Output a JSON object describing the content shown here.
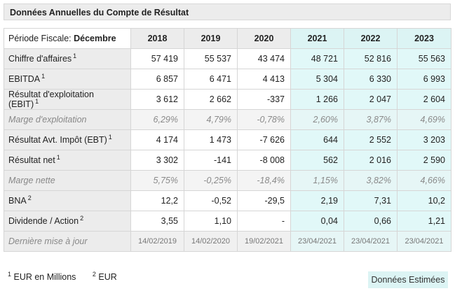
{
  "title": "Données Annuelles du Compte de Résultat",
  "header": {
    "period_label": "Période Fiscale: ",
    "period_value": "Décembre",
    "years": [
      "2018",
      "2019",
      "2020",
      "2021",
      "2022",
      "2023"
    ]
  },
  "rows": [
    {
      "label": "Chiffre d'affaires",
      "note": "1",
      "values": [
        "57 419",
        "55 537",
        "43 474",
        "48 721",
        "52 816",
        "55 563"
      ]
    },
    {
      "label": "EBITDA",
      "note": "1",
      "values": [
        "6 857",
        "6 471",
        "4 413",
        "5 304",
        "6 330",
        "6 993"
      ]
    },
    {
      "label": "Résultat d'exploitation (EBIT)",
      "note": "1",
      "values": [
        "3 612",
        "2 662",
        "-337",
        "1 266",
        "2 047",
        "2 604"
      ]
    },
    {
      "label": "Marge d'exploitation",
      "note": "",
      "values": [
        "6,29%",
        "4,79%",
        "-0,78%",
        "2,60%",
        "3,87%",
        "4,69%"
      ]
    },
    {
      "label": "Résultat Avt. Impôt (EBT)",
      "note": "1",
      "values": [
        "4 174",
        "1 473",
        "-7 626",
        "644",
        "2 552",
        "3 203"
      ]
    },
    {
      "label": "Résultat net",
      "note": "1",
      "values": [
        "3 302",
        "-141",
        "-8 008",
        "562",
        "2 016",
        "2 590"
      ]
    },
    {
      "label": "Marge nette",
      "note": "",
      "values": [
        "5,75%",
        "-0,25%",
        "-18,4%",
        "1,15%",
        "3,82%",
        "4,66%"
      ]
    },
    {
      "label": "BNA",
      "note": "2",
      "values": [
        "12,2",
        "-0,52",
        "-29,5",
        "2,19",
        "7,31",
        "10,2"
      ]
    },
    {
      "label": "Dividende / Action",
      "note": "2",
      "values": [
        "3,55",
        "1,10",
        "-",
        "0,04",
        "0,66",
        "1,21"
      ]
    }
  ],
  "last_update": {
    "label": "Dernière mise à jour",
    "values": [
      "14/02/2019",
      "14/02/2020",
      "19/02/2021",
      "23/04/2021",
      "23/04/2021",
      "23/04/2021"
    ]
  },
  "footnotes": [
    {
      "num": "1",
      "text": " EUR en Millions"
    },
    {
      "num": "2",
      "text": " EUR"
    }
  ],
  "estimates_badge": "Données Estimées",
  "colors": {
    "estimate_bg": "#e1f8f8",
    "header_bg": "#ececec"
  }
}
